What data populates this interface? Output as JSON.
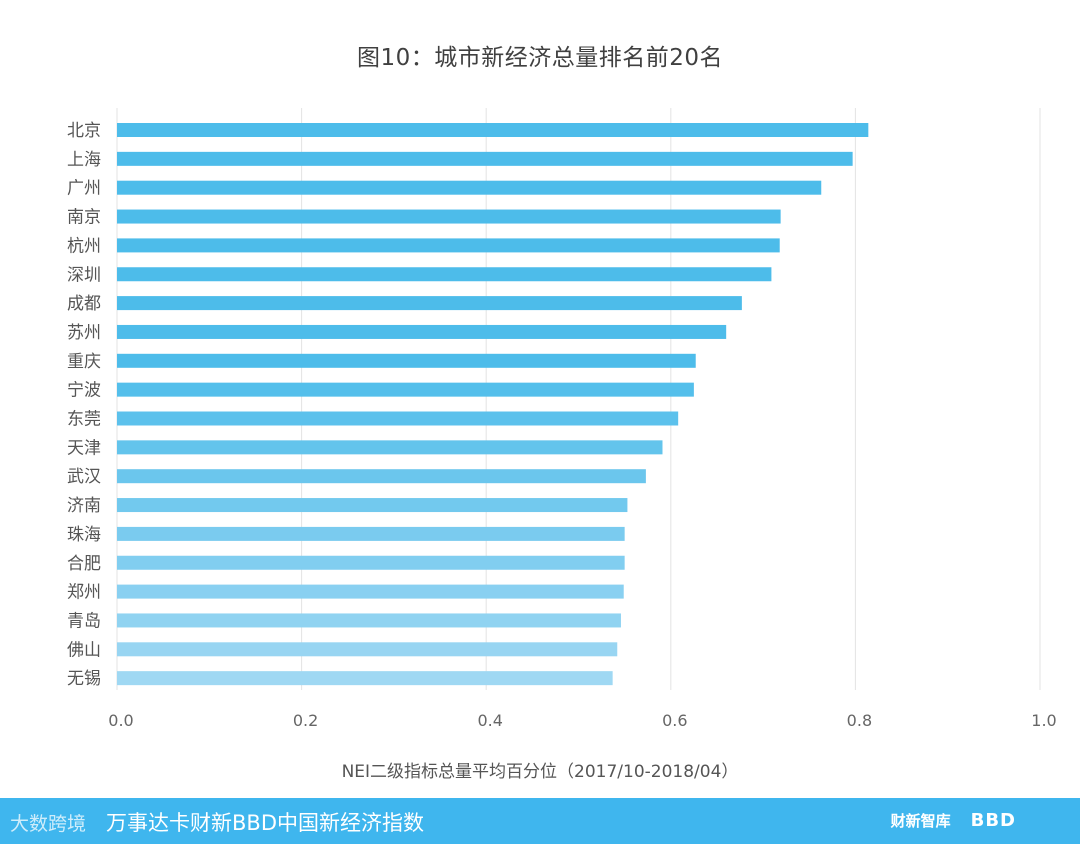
{
  "chart_data": {
    "type": "bar",
    "orientation": "horizontal",
    "title": "图10：城市新经济总量排名前20名",
    "xlabel": "NEI二级指标总量平均百分位（2017/10-2018/04）",
    "ylabel": "",
    "xlim": [
      0,
      1.0
    ],
    "xticks": [
      "0.0",
      "0.2",
      "0.4",
      "0.6",
      "0.8",
      "1.0"
    ],
    "grid": "vertical",
    "bar_color_top": "#4dbcea",
    "bar_color_bottom": "#9fd8f3",
    "categories": [
      "北京",
      "上海",
      "广州",
      "南京",
      "杭州",
      "深圳",
      "成都",
      "苏州",
      "重庆",
      "宁波",
      "东莞",
      "天津",
      "武汉",
      "济南",
      "珠海",
      "合肥",
      "郑州",
      "青岛",
      "佛山",
      "无锡"
    ],
    "values": [
      0.814,
      0.797,
      0.763,
      0.719,
      0.718,
      0.709,
      0.677,
      0.66,
      0.627,
      0.625,
      0.608,
      0.591,
      0.573,
      0.553,
      0.55,
      0.55,
      0.549,
      0.546,
      0.542,
      0.537
    ]
  },
  "footer": {
    "watermark": "大数跨境",
    "title": "万事达卡财新BBD中国新经济指数",
    "brand1": "财新智库",
    "brand2": "BBD",
    "background": "#3fb6ee"
  }
}
